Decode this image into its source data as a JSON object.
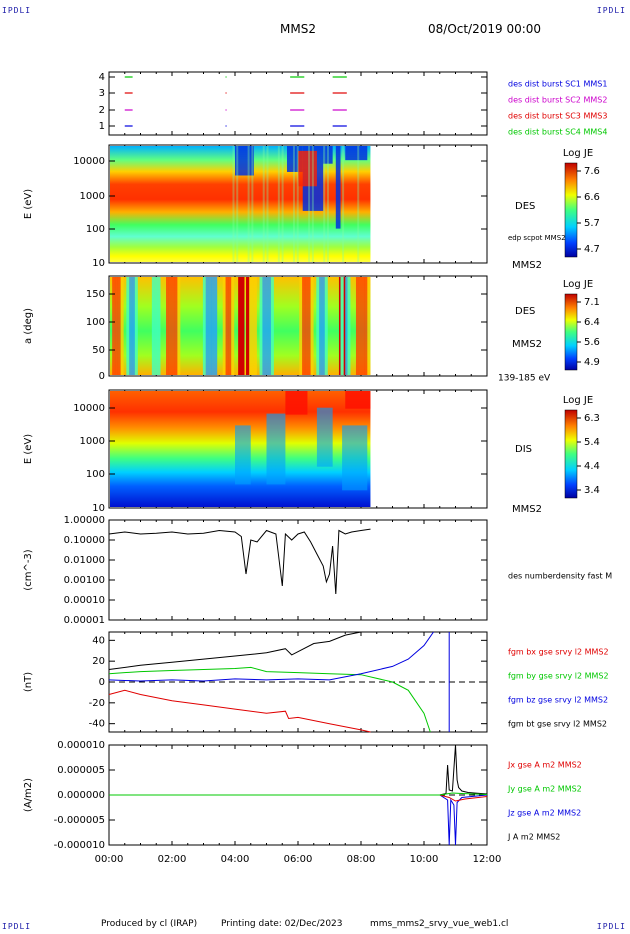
{
  "corner_labels": {
    "tl": "IPDLI",
    "tr": "IPDLI",
    "bl": "IPDLI",
    "br": "IPDLI"
  },
  "header": {
    "spacecraft": "MMS2",
    "date": "08/Oct/2019 00:00"
  },
  "footer": {
    "produced_by": "Produced by cl (IRAP)",
    "printing_date": "Printing date: 02/Dec/2023",
    "file": "mms_mms2_srvy_vue_web1.cl"
  },
  "colors": {
    "red": "#e00000",
    "green": "#00c800",
    "blue": "#0000e0",
    "magenta": "#cc00cc",
    "black": "#000000"
  },
  "x_axis": {
    "ticks": [
      "00:00",
      "02:00",
      "04:00",
      "06:00",
      "08:00",
      "10:00",
      "12:00"
    ],
    "range_hours": [
      0,
      12
    ]
  },
  "chart_data": [
    {
      "type": "line",
      "panel": "availability",
      "yticks": [
        "4",
        "3",
        "2",
        "1"
      ],
      "legend": [
        {
          "label": "des dist burst SC1 MMS1",
          "color": "#0000e0"
        },
        {
          "label": "des dist burst SC2 MMS2",
          "color": "#cc00cc"
        },
        {
          "label": "des dist burst SC3 MMS3",
          "color": "#e00000"
        },
        {
          "label": "des dist burst SC4 MMS4",
          "color": "#00c800"
        }
      ],
      "segments_hours": [
        [
          0.5,
          0.75
        ],
        [
          3.7,
          3.72
        ],
        [
          5.75,
          6.2
        ],
        [
          7.1,
          7.55
        ]
      ]
    },
    {
      "type": "heatmap",
      "panel": "des-energy",
      "ylabel": "E (eV)",
      "yticks": [
        "10000",
        "1000",
        "100",
        "10"
      ],
      "instrument": "DES",
      "overlay_label": "edp scpot MMS2",
      "sc_label": "MMS2",
      "colorbar": {
        "title": "Log JE",
        "ticks": [
          "7.6",
          "6.6",
          "5.7",
          "4.7"
        ]
      },
      "data_end_hours": 8.3
    },
    {
      "type": "heatmap",
      "panel": "des-pitch",
      "ylabel": "a (deg)",
      "yticks": [
        "150",
        "100",
        "50",
        "0"
      ],
      "instrument": "DES",
      "sc_label": "MMS2",
      "energy_range": "139-185 eV",
      "colorbar": {
        "title": "Log JE",
        "ticks": [
          "7.1",
          "6.4",
          "5.6",
          "4.9"
        ]
      },
      "data_end_hours": 8.3
    },
    {
      "type": "heatmap",
      "panel": "dis-energy",
      "ylabel": "E (eV)",
      "yticks": [
        "10000",
        "1000",
        "100",
        "10"
      ],
      "instrument": "DIS",
      "sc_label": "MMS2",
      "colorbar": {
        "title": "Log JE",
        "ticks": [
          "6.3",
          "5.4",
          "4.4",
          "3.4"
        ]
      },
      "data_end_hours": 8.3
    },
    {
      "type": "line",
      "panel": "density",
      "ylabel": "(cm^-3)",
      "yticks": [
        "1.00000",
        "0.10000",
        "0.01000",
        "0.00100",
        "0.00010",
        "0.00001"
      ],
      "log_range": [
        1e-05,
        1.0
      ],
      "legend": [
        {
          "label": "des numberdensity fast M",
          "color": "#000000"
        }
      ],
      "x": [
        0,
        0.5,
        1,
        1.5,
        2,
        2.5,
        3,
        3.5,
        4,
        4.2,
        4.35,
        4.5,
        4.7,
        5.0,
        5.3,
        5.5,
        5.6,
        5.8,
        6.0,
        6.2,
        6.4,
        6.6,
        6.8,
        6.9,
        7.0,
        7.1,
        7.2,
        7.3,
        7.5,
        7.7,
        8.0,
        8.3
      ],
      "values": [
        0.2,
        0.25,
        0.2,
        0.22,
        0.25,
        0.2,
        0.22,
        0.3,
        0.25,
        0.15,
        0.002,
        0.1,
        0.08,
        0.3,
        0.2,
        0.0005,
        0.2,
        0.1,
        0.2,
        0.25,
        0.08,
        0.02,
        0.005,
        0.0008,
        0.002,
        0.05,
        0.0002,
        0.3,
        0.2,
        0.25,
        0.3,
        0.35
      ]
    },
    {
      "type": "line",
      "panel": "fgm",
      "ylabel": "(nT)",
      "yticks": [
        "40",
        "20",
        "0",
        "-20",
        "-40"
      ],
      "ylim": [
        -48,
        48
      ],
      "legend": [
        {
          "label": "fgm bx gse srvy l2 MMS2",
          "color": "#e00000"
        },
        {
          "label": "fgm by gse srvy l2 MMS2",
          "color": "#00c800"
        },
        {
          "label": "fgm bz gse srvy l2 MMS2",
          "color": "#0000e0"
        },
        {
          "label": "fgm bt gse srvy l2 MMS2",
          "color": "#000000"
        }
      ],
      "series": [
        {
          "name": "fgm bt gse srvy l2 MMS2",
          "x": [
            0,
            1,
            2,
            3,
            4,
            5,
            5.6,
            5.8,
            6.5,
            7,
            7.5,
            8.0,
            8.3
          ],
          "values": [
            12,
            16,
            19,
            22,
            25,
            28,
            32,
            26,
            37,
            39,
            45,
            48,
            49
          ]
        },
        {
          "name": "fgm by gse srvy l2 MMS2",
          "x": [
            0,
            1,
            2,
            3,
            4,
            4.5,
            5,
            6,
            7,
            8,
            9,
            9.5,
            10,
            10.2
          ],
          "values": [
            8,
            10,
            11,
            12,
            13,
            14,
            10,
            9,
            8,
            7,
            0,
            -8,
            -30,
            -48
          ]
        },
        {
          "name": "fgm bz gse srvy l2 MMS2",
          "x": [
            0,
            1,
            2,
            3,
            4,
            5,
            6,
            7,
            8,
            9,
            9.5,
            10,
            10.3
          ],
          "values": [
            2,
            1,
            2,
            1,
            3,
            2,
            3,
            2,
            8,
            15,
            22,
            35,
            48
          ]
        },
        {
          "name": "fgm bx gse srvy l2 MMS2",
          "x": [
            0,
            0.5,
            1,
            2,
            3,
            4,
            5,
            5.6,
            5.7,
            6,
            7,
            8.0,
            8.3
          ],
          "values": [
            -12,
            -8,
            -12,
            -18,
            -22,
            -26,
            -30,
            -28,
            -35,
            -34,
            -40,
            -46,
            -48
          ]
        }
      ],
      "blue_vline_hours": 10.8
    },
    {
      "type": "line",
      "panel": "current",
      "ylabel": "(A/m2)",
      "yticks": [
        "0.000010",
        "0.000005",
        "0.000000",
        "-0.000005",
        "-0.000010"
      ],
      "ylim": [
        -1e-05,
        1e-05
      ],
      "legend": [
        {
          "label": "Jx gse A m2 MMS2",
          "color": "#e00000"
        },
        {
          "label": "Jy gse A m2 MMS2",
          "color": "#00c800"
        },
        {
          "label": "Jz gse A m2 MMS2",
          "color": "#0000e0"
        },
        {
          "label": "J A m2 MMS2",
          "color": "#000000"
        }
      ],
      "series": [
        {
          "name": "J A m2 MMS2",
          "x": [
            0,
            10.5,
            10.7,
            10.75,
            10.8,
            10.9,
            11.0,
            11.05,
            11.1,
            11.2,
            11.4,
            12
          ],
          "values": [
            0,
            0,
            3e-07,
            6e-06,
            1e-06,
            8e-07,
            1e-05,
            3e-06,
            1.5e-06,
            8e-07,
            5e-07,
            2e-07
          ]
        },
        {
          "name": "Jz gse A m2 MMS2",
          "x": [
            0,
            10.5,
            10.75,
            10.8,
            10.85,
            10.95,
            11.0,
            11.05,
            11.2,
            12
          ],
          "values": [
            0,
            0,
            -1e-06,
            -1e-05,
            -1e-06,
            -2e-06,
            -1e-05,
            -1.5e-06,
            -5e-07,
            0
          ]
        },
        {
          "name": "Jx gse A m2 MMS2",
          "x": [
            0,
            10.5,
            10.8,
            11.0,
            11.3,
            12
          ],
          "values": [
            0,
            0,
            -5e-07,
            -1.2e-06,
            -8e-07,
            -3e-07
          ]
        },
        {
          "name": "Jy gse A m2 MMS2",
          "x": [
            0,
            10.5,
            10.9,
            11.2,
            12
          ],
          "values": [
            0,
            0,
            4e-07,
            3e-07,
            1e-07
          ]
        }
      ]
    }
  ]
}
